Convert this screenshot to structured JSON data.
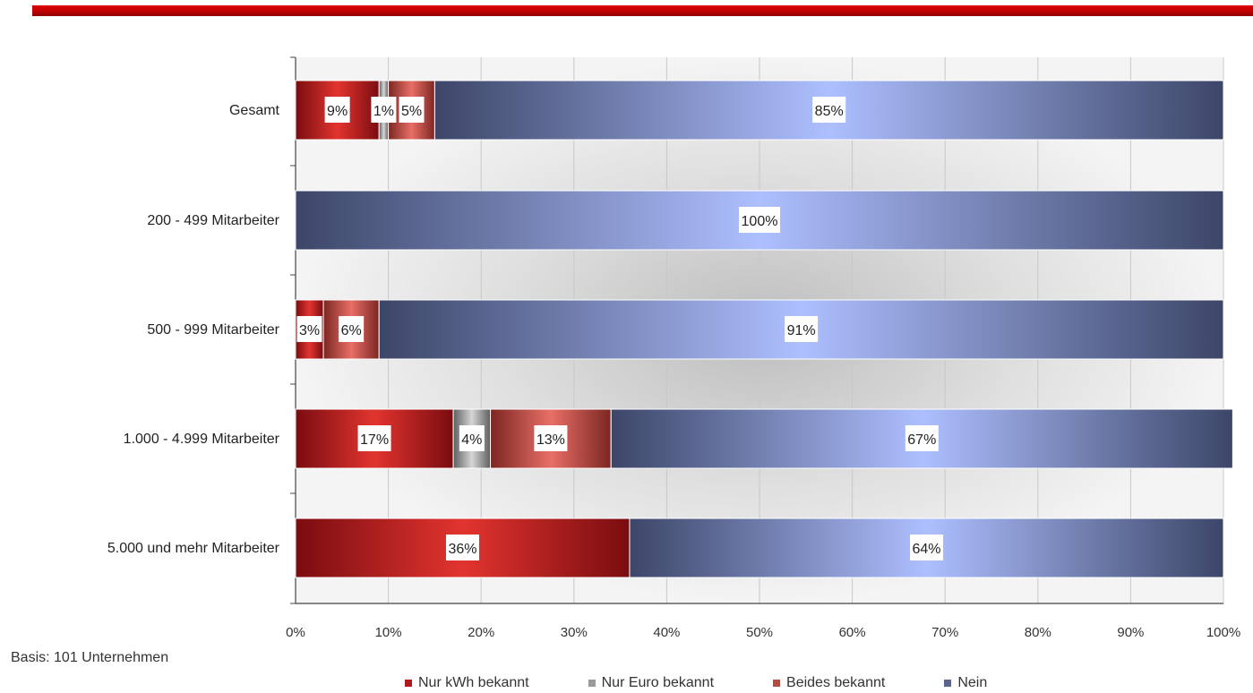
{
  "chart_data": {
    "type": "bar",
    "orientation": "horizontal",
    "stacked": true,
    "categories": [
      "Gesamt",
      "200 - 499 Mitarbeiter",
      "500 - 999 Mitarbeiter",
      "1.000 - 4.999 Mitarbeiter",
      "5.000 und mehr Mitarbeiter"
    ],
    "series": [
      {
        "name": "Nur kWh bekannt",
        "color": "#b01a1e",
        "values": [
          9,
          0,
          3,
          17,
          36
        ]
      },
      {
        "name": "Nur Euro bekannt",
        "color": "#9a9a9a",
        "values": [
          1,
          0,
          0,
          4,
          0
        ]
      },
      {
        "name": "Beides bekannt",
        "color": "#b84a44",
        "values": [
          5,
          0,
          6,
          13,
          0
        ]
      },
      {
        "name": "Nein",
        "color": "#5b6690",
        "values": [
          85,
          100,
          91,
          67,
          64
        ]
      }
    ],
    "data_labels": [
      [
        "9%",
        "",
        "3%",
        "17%",
        "36%"
      ],
      [
        "1%",
        "",
        "",
        "4%",
        ""
      ],
      [
        "5%",
        "",
        "6%",
        "13%",
        ""
      ],
      [
        "85%",
        "100%",
        "91%",
        "67%",
        "64%"
      ]
    ],
    "x_ticks": [
      "0%",
      "10%",
      "20%",
      "30%",
      "40%",
      "50%",
      "60%",
      "70%",
      "80%",
      "90%",
      "100%"
    ],
    "xlim": [
      0,
      100
    ],
    "grid": true,
    "legend_position": "bottom"
  },
  "footnote": "Basis: 101 Unternehmen"
}
